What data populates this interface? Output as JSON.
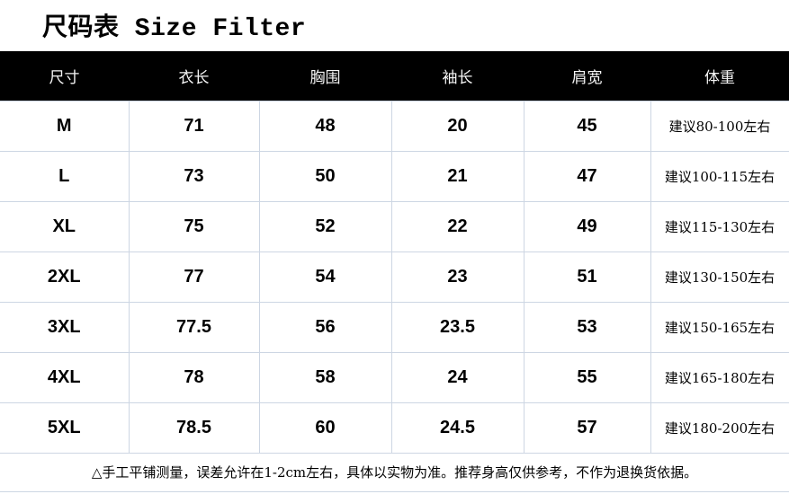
{
  "chart_data": {
    "type": "table",
    "title": "尺码表 Size Filter",
    "headers": [
      "尺寸",
      "衣长",
      "胸围",
      "袖长",
      "肩宽",
      "体重"
    ],
    "rows": [
      [
        "M",
        "71",
        "48",
        "20",
        "45",
        "建议80-100左右"
      ],
      [
        "L",
        "73",
        "50",
        "21",
        "47",
        "建议100-115左右"
      ],
      [
        "XL",
        "75",
        "52",
        "22",
        "49",
        "建议115-130左右"
      ],
      [
        "2XL",
        "77",
        "54",
        "23",
        "51",
        "建议130-150左右"
      ],
      [
        "3XL",
        "77.5",
        "56",
        "23.5",
        "53",
        "建议150-165左右"
      ],
      [
        "4XL",
        "78",
        "58",
        "24",
        "55",
        "建议165-180左右"
      ],
      [
        "5XL",
        "78.5",
        "60",
        "24.5",
        "57",
        "建议180-200左右"
      ]
    ],
    "footnote": "△手工平铺测量，误差允许在1-2cm左右，具体以实物为准。推荐身高仅供参考，不作为退换货依据。",
    "layout_hints": {
      "header_style": "black bar, white text",
      "grid": "light blue-gray lines",
      "columns": 6,
      "data_rows": 7
    }
  },
  "colors": {
    "header_bg": "#000000",
    "header_text": "#f5f5f5",
    "grid_line": "#cdd6e3",
    "text": "#000000",
    "background": "#ffffff"
  }
}
